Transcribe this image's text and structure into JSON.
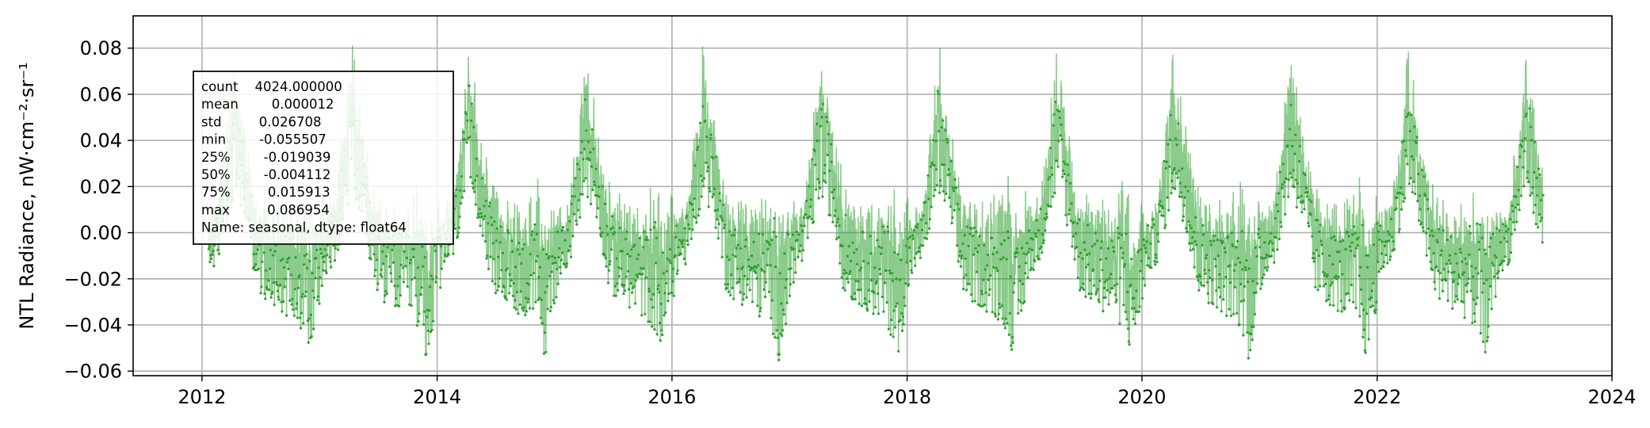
{
  "chart_data": {
    "type": "line",
    "title": "",
    "xlabel": "",
    "ylabel": "NTL Radiance, nW·cm⁻²·sr⁻¹",
    "xlim": [
      "2011-06-01",
      "2024-01-01"
    ],
    "ylim": [
      -0.062,
      0.094
    ],
    "x_ticks": [
      "2012",
      "2014",
      "2016",
      "2018",
      "2020",
      "2022",
      "2024"
    ],
    "y_ticks": [
      "−0.06",
      "−0.04",
      "−0.02",
      "0.00",
      "0.02",
      "0.04",
      "0.06",
      "0.08"
    ],
    "grid": true,
    "series": [
      {
        "color": "#2ca02c",
        "marker": "dot",
        "date_range": [
          "2012-01-20",
          "2023-06-01"
        ],
        "period_days": 365,
        "cycle_profile": [
          {
            "day": 0,
            "low": -0.018,
            "high": 0.012
          },
          {
            "day": 30,
            "low": -0.013,
            "high": 0.018
          },
          {
            "day": 60,
            "low": 0.005,
            "high": 0.055
          },
          {
            "day": 80,
            "low": 0.015,
            "high": 0.087
          },
          {
            "day": 100,
            "low": 0.01,
            "high": 0.065
          },
          {
            "day": 125,
            "low": -0.002,
            "high": 0.043
          },
          {
            "day": 150,
            "low": -0.025,
            "high": 0.025
          },
          {
            "day": 180,
            "low": -0.03,
            "high": 0.018
          },
          {
            "day": 210,
            "low": -0.032,
            "high": 0.015
          },
          {
            "day": 240,
            "low": -0.036,
            "high": 0.016
          },
          {
            "day": 270,
            "low": -0.038,
            "high": 0.02
          },
          {
            "day": 300,
            "low": -0.045,
            "high": 0.03
          },
          {
            "day": 315,
            "low": -0.056,
            "high": 0.015
          },
          {
            "day": 330,
            "low": -0.045,
            "high": 0.01
          },
          {
            "day": 350,
            "low": -0.03,
            "high": 0.02
          },
          {
            "day": 365,
            "low": -0.018,
            "high": 0.012
          }
        ]
      }
    ],
    "annotations": [
      {
        "type": "statistics-box",
        "placement": "upper-left",
        "lines": [
          "count    4024.000000",
          "mean        0.000012",
          "std         0.026708",
          "min        -0.055507",
          "25%        -0.019039",
          "50%        -0.004112",
          "75%         0.015913",
          "max         0.086954",
          "Name: seasonal, dtype: float64"
        ]
      }
    ]
  }
}
